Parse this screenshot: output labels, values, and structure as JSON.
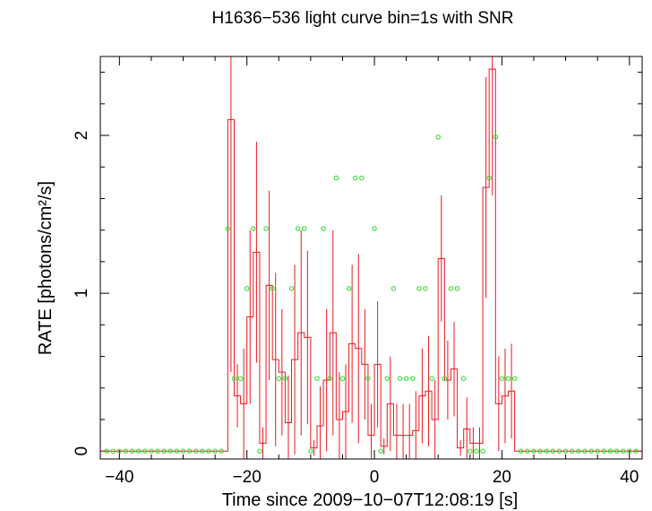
{
  "chart_data": {
    "type": "line",
    "title": "H1636−536 light curve bin=1s with SNR",
    "xlabel": "Time since 2009−10−07T12:08:19 [s]",
    "ylabel": "RATE [photons/cm²/s]",
    "xlim": [
      -43,
      42
    ],
    "ylim": [
      -0.05,
      2.5
    ],
    "xticks": [
      -40,
      -20,
      0,
      20,
      40
    ],
    "xtick_labels": [
      "−40",
      "−20",
      "0",
      "20",
      "40"
    ],
    "yticks": [
      0,
      1,
      2
    ],
    "ytick_labels": [
      "0",
      "1",
      "2"
    ],
    "grid": false,
    "colors": {
      "rate": "#e8191d",
      "snr": "#22dd22",
      "axes": "#000000"
    },
    "series": [
      {
        "style": "step-with-error-bars",
        "x": [
          -43,
          -42,
          -41,
          -40,
          -39,
          -38,
          -37,
          -36,
          -35,
          -34,
          -33,
          -32,
          -31,
          -30,
          -29,
          -28,
          -27,
          -26,
          -25,
          -24,
          -23,
          -22,
          -21,
          -20,
          -19,
          -18,
          -17,
          -16,
          -15,
          -14,
          -13,
          -12,
          -11,
          -10,
          -9,
          -8,
          -7,
          -6,
          -5,
          -4,
          -3,
          -2,
          -1,
          0,
          1,
          2,
          3,
          4,
          5,
          6,
          7,
          8,
          9,
          10,
          11,
          12,
          13,
          14,
          15,
          16,
          17,
          18,
          19,
          20,
          21,
          22,
          23,
          24,
          25,
          26,
          27,
          28,
          29,
          30,
          31,
          32,
          33,
          34,
          35,
          36,
          37,
          38,
          39,
          40,
          41
        ],
        "values": [
          0,
          0,
          0,
          0,
          0,
          0,
          0,
          0,
          0,
          0,
          0,
          0,
          0,
          0,
          0,
          0,
          0,
          0,
          0,
          0,
          2.1,
          0.35,
          0.3,
          0.85,
          1.26,
          0.05,
          1.05,
          0.58,
          0.5,
          0.18,
          0.58,
          0.75,
          0.72,
          0.02,
          0.16,
          0.45,
          0.75,
          0.2,
          0.25,
          0.68,
          0.65,
          0.55,
          0.1,
          0.55,
          0.03,
          0.3,
          0.1,
          0.1,
          0.1,
          0.13,
          0.35,
          0.38,
          0.2,
          1.22,
          0.45,
          0.52,
          0.02,
          0.14,
          0.05,
          0.05,
          1.67,
          2.42,
          0.3,
          0.35,
          0.38,
          0,
          0,
          0,
          0,
          0,
          0,
          0,
          0,
          0,
          0,
          0,
          0,
          0,
          0,
          0,
          0,
          0,
          0,
          0,
          0
        ],
        "errors": [
          0,
          0,
          0,
          0,
          0,
          0,
          0,
          0,
          0,
          0,
          0,
          0,
          0,
          0,
          0,
          0,
          0,
          0,
          0,
          0,
          1.6,
          0.2,
          0.35,
          0.55,
          0.7,
          0.1,
          0.6,
          0.55,
          0.4,
          0.3,
          0.6,
          0.65,
          0.55,
          0.05,
          0.25,
          0.45,
          0.65,
          0.3,
          0.3,
          0.5,
          0.6,
          0.35,
          0.2,
          0.4,
          0.05,
          0.3,
          0.2,
          0.2,
          0.2,
          0.25,
          0.3,
          0.35,
          0.25,
          0.4,
          0.25,
          0.3,
          0.05,
          0.2,
          0.1,
          0.1,
          0.7,
          0.8,
          0.3,
          0.3,
          0.3,
          0,
          0,
          0,
          0,
          0,
          0,
          0,
          0,
          0,
          0,
          0,
          0,
          0,
          0,
          0,
          0,
          0,
          0,
          0,
          0
        ]
      },
      {
        "style": "points",
        "x": [
          -42,
          -41,
          -40,
          -39,
          -38,
          -37,
          -36,
          -35,
          -34,
          -33,
          -32,
          -31,
          -30,
          -29,
          -28,
          -27,
          -26,
          -25,
          -24,
          -23,
          -22,
          -21,
          -20,
          -19,
          -18,
          -17,
          -16,
          -15,
          -14,
          -13,
          -12,
          -11,
          -10,
          -9,
          -8,
          -7,
          -6,
          -5,
          -4,
          -3,
          -2,
          -1,
          0,
          1,
          2,
          3,
          4,
          5,
          6,
          7,
          8,
          9,
          10,
          11,
          12,
          13,
          14,
          15,
          16,
          17,
          18,
          19,
          20,
          21,
          22,
          23,
          24,
          25,
          26,
          27,
          28,
          29,
          30,
          31,
          32,
          33,
          34,
          35,
          36,
          37,
          38,
          39,
          40,
          41
        ],
        "values": [
          0,
          0,
          0,
          0,
          0,
          0,
          0,
          0,
          0,
          0,
          0,
          0,
          0,
          0,
          0,
          0,
          0,
          0,
          0,
          1.41,
          0.46,
          0.46,
          1.03,
          1.41,
          0,
          1.41,
          1.03,
          0.46,
          0.46,
          1.03,
          1.41,
          1.41,
          0,
          0.46,
          1.41,
          0.46,
          1.73,
          0.46,
          1.03,
          1.73,
          1.73,
          0.46,
          1.41,
          0,
          0.46,
          1.03,
          0.46,
          0.46,
          0.46,
          1.03,
          1.03,
          0.46,
          1.99,
          0.46,
          1.03,
          1.03,
          0.46,
          0,
          0,
          0,
          1.73,
          1.99,
          0.46,
          0.46,
          0.46,
          0,
          0,
          0,
          0,
          0,
          0,
          0,
          0,
          0,
          0,
          0,
          0,
          0,
          0,
          0,
          0,
          0,
          0,
          0
        ]
      }
    ]
  }
}
